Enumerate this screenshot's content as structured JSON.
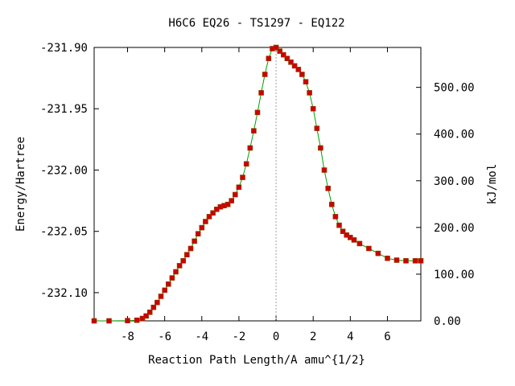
{
  "chart_data": {
    "type": "line",
    "title": "H6C6   EQ26 - TS1297 - EQ122",
    "xlabel": "Reaction Path Length/A amu^{1/2}",
    "ylabel": "Energy/Hartree",
    "y2label": "kJ/mol",
    "xlim": [
      -9.8,
      7.8
    ],
    "ylim": [
      -232.123,
      -231.9
    ],
    "y2lim": [
      0,
      585.5
    ],
    "x_ticks": [
      -8,
      -6,
      -4,
      -2,
      0,
      2,
      4,
      6
    ],
    "x_tick_labels": [
      "-8",
      "-6",
      "-4",
      "-2",
      "0",
      "2",
      "4",
      "6"
    ],
    "y_ticks": [
      -231.9,
      -231.95,
      -232.0,
      -232.05,
      -232.1
    ],
    "y_tick_labels": [
      "-231.90",
      "-231.95",
      "-232.00",
      "-232.05",
      "-232.10"
    ],
    "y2_ticks": [
      0,
      100,
      200,
      300,
      400,
      500
    ],
    "y2_tick_labels": [
      "0.00",
      "100.00",
      "200.00",
      "300.00",
      "400.00",
      "500.00"
    ],
    "grid": false,
    "zero_line": true,
    "series": [
      {
        "color": "#cc0000",
        "line_color": "#00a000",
        "x": [
          -9.8,
          -9.0,
          -8.0,
          -7.5,
          -7.2,
          -7.0,
          -6.8,
          -6.6,
          -6.4,
          -6.2,
          -6.0,
          -5.8,
          -5.6,
          -5.4,
          -5.2,
          -5.0,
          -4.8,
          -4.6,
          -4.4,
          -4.2,
          -4.0,
          -3.8,
          -3.6,
          -3.4,
          -3.2,
          -3.0,
          -2.8,
          -2.6,
          -2.4,
          -2.2,
          -2.0,
          -1.8,
          -1.6,
          -1.4,
          -1.2,
          -1.0,
          -0.8,
          -0.6,
          -0.4,
          -0.2,
          0.0,
          0.2,
          0.4,
          0.6,
          0.8,
          1.0,
          1.2,
          1.4,
          1.6,
          1.8,
          2.0,
          2.2,
          2.4,
          2.6,
          2.8,
          3.0,
          3.2,
          3.4,
          3.6,
          3.8,
          4.0,
          4.2,
          4.5,
          5.0,
          5.5,
          6.0,
          6.5,
          7.0,
          7.5,
          7.8
        ],
        "y": [
          -232.123,
          -232.123,
          -232.1228,
          -232.1225,
          -232.121,
          -232.119,
          -232.116,
          -232.112,
          -232.108,
          -232.103,
          -232.098,
          -232.093,
          -232.088,
          -232.083,
          -232.078,
          -232.074,
          -232.069,
          -232.064,
          -232.058,
          -232.052,
          -232.047,
          -232.042,
          -232.038,
          -232.035,
          -232.032,
          -232.03,
          -232.029,
          -232.028,
          -232.025,
          -232.02,
          -232.014,
          -232.006,
          -231.995,
          -231.982,
          -231.968,
          -231.953,
          -231.937,
          -231.922,
          -231.909,
          -231.901,
          -231.9,
          -231.903,
          -231.906,
          -231.909,
          -231.912,
          -231.915,
          -231.918,
          -231.922,
          -231.928,
          -231.937,
          -231.95,
          -231.966,
          -231.982,
          -232.0,
          -232.015,
          -232.028,
          -232.038,
          -232.045,
          -232.05,
          -232.053,
          -232.055,
          -232.057,
          -232.06,
          -232.064,
          -232.068,
          -232.072,
          -232.0735,
          -232.074,
          -232.074,
          -232.074
        ]
      }
    ]
  }
}
